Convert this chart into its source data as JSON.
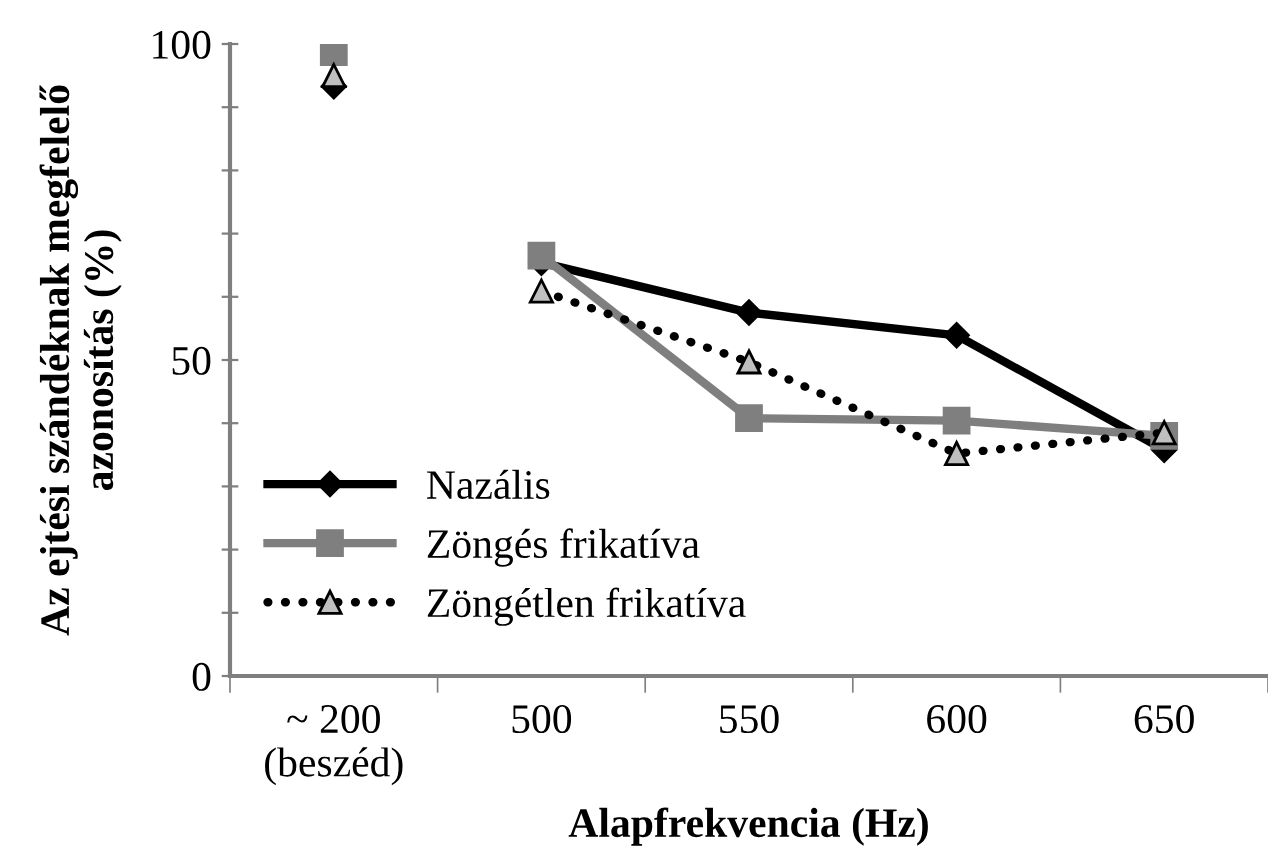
{
  "chart_data": {
    "type": "line",
    "xlabel": "Alapfrekvencia (Hz)",
    "ylabel": "Az ejtési szándéknak megfelelő\nazonosítás (%)",
    "categories": [
      "~ 200\n(beszéd)",
      "500",
      "550",
      "600",
      "650"
    ],
    "series": [
      {
        "name": "Nazális",
        "color": "#000000",
        "marker": "diamond",
        "line_style": "solid",
        "values": [
          null,
          65.4,
          57.5,
          53.9,
          35.8
        ]
      },
      {
        "name": "Zöngés frikatíva",
        "color": "#7f7f7f",
        "marker": "square",
        "line_style": "solid",
        "values": [
          null,
          66.5,
          40.8,
          40.4,
          38.0
        ]
      },
      {
        "name": "Zöngétlen frikatíva",
        "color": "#000000",
        "marker": "triangle",
        "line_style": "dotted",
        "values": [
          null,
          60.9,
          49.7,
          35.2,
          38.5
        ]
      },
      {
        "type": "scatter",
        "color": "#000000",
        "marker": "diamond",
        "values": [
          93.3,
          null,
          null,
          null,
          null
        ]
      },
      {
        "type": "scatter",
        "color": "#7f7f7f",
        "marker": "square",
        "values": [
          98.7,
          null,
          null,
          null,
          null
        ]
      },
      {
        "type": "scatter",
        "color": "#000000",
        "marker": "triangle",
        "values": [
          95.0,
          null,
          null,
          null,
          null
        ]
      }
    ],
    "ylim": [
      0,
      100
    ],
    "yticks": [
      0,
      {
        "value": 10,
        "label": null
      },
      {
        "value": 20,
        "label": null
      },
      {
        "value": 30,
        "label": null
      },
      {
        "value": 40,
        "label": null
      },
      50,
      {
        "value": 60,
        "label": null
      },
      {
        "value": 70,
        "label": null
      },
      {
        "value": 80,
        "label": null
      },
      {
        "value": 90,
        "label": null
      },
      100
    ],
    "grid": false,
    "legend": "lower left"
  }
}
